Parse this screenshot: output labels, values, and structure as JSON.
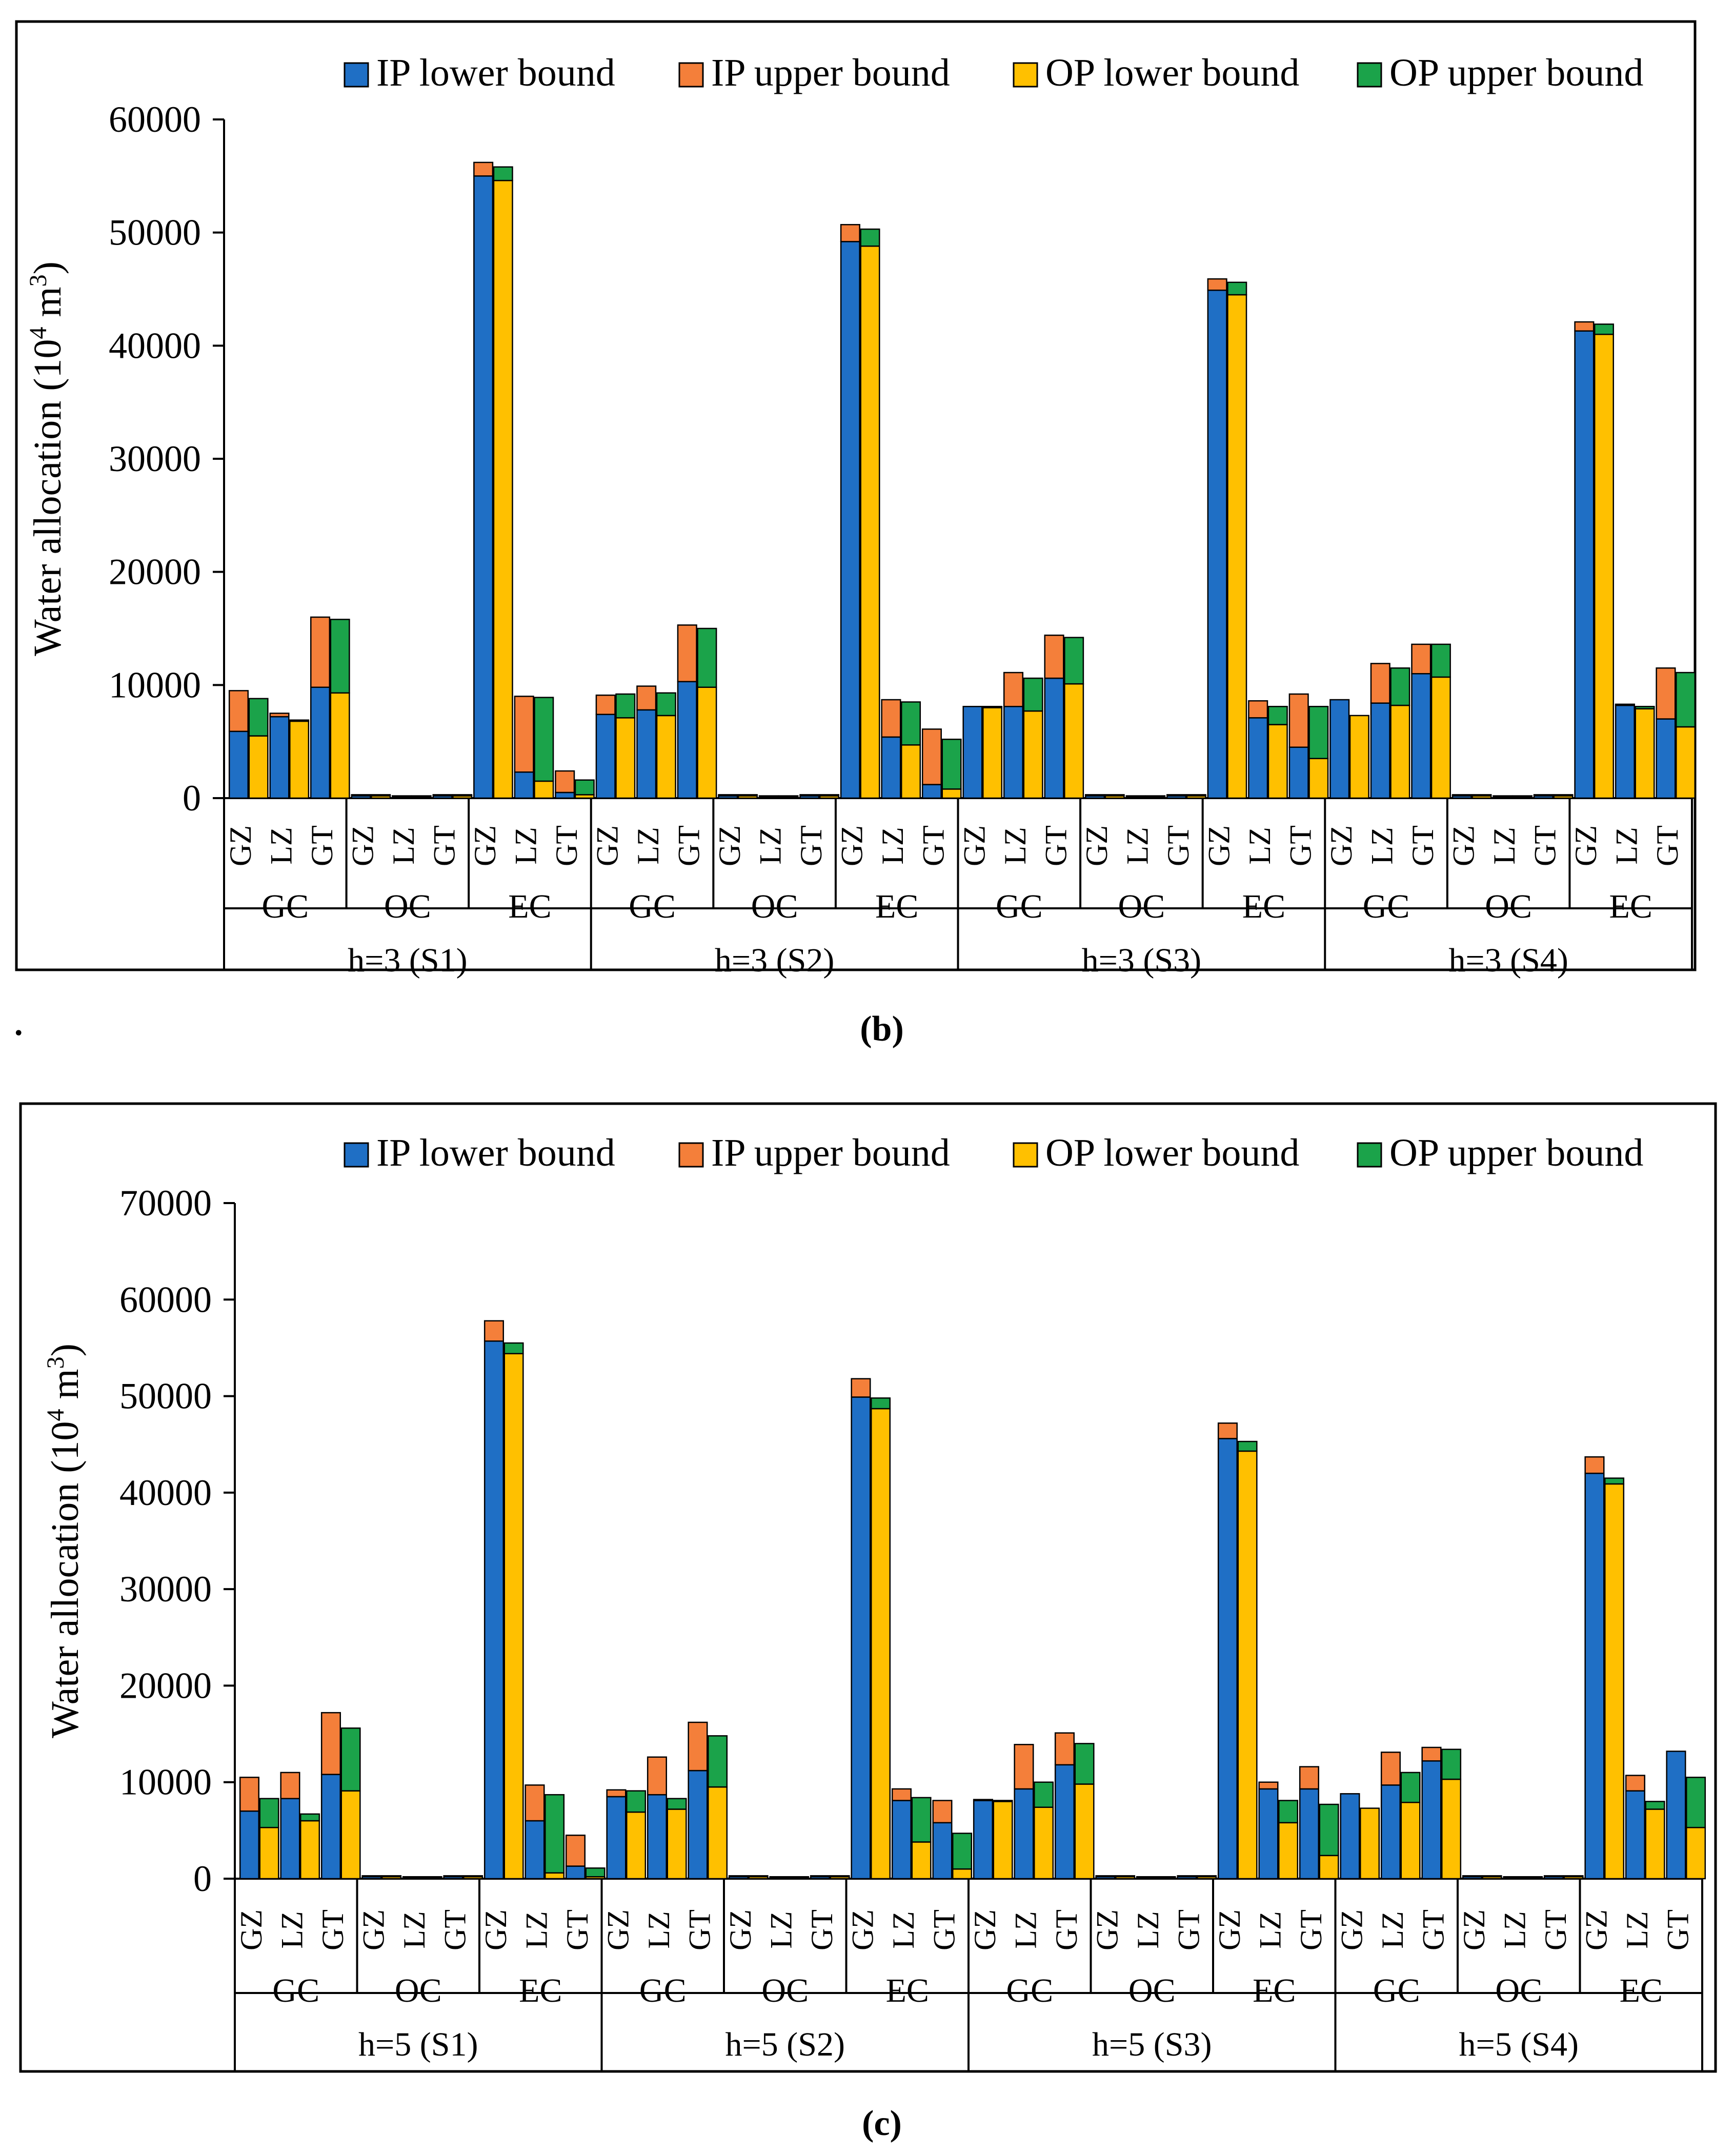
{
  "colors": {
    "ip_lower": "#1F6FC5",
    "ip_upper": "#F47F3A",
    "op_lower": "#FFC000",
    "op_upper": "#1BA34A"
  },
  "period_label": ".",
  "chart_data": [
    {
      "type": "bar",
      "panel_label": "(b)",
      "ylabel": "Water allocation (10⁴ m³)",
      "ylim": [
        0,
        60000
      ],
      "yticks": [
        0,
        10000,
        20000,
        30000,
        40000,
        50000,
        60000
      ],
      "legend": [
        "IP lower bound",
        "IP upper bound",
        "OP lower bound",
        "OP upper bound"
      ],
      "legend_position": "top",
      "scenarios": [
        "h=3 (S1)",
        "h=3 (S2)",
        "h=3 (S3)",
        "h=3 (S4)"
      ],
      "sectors": [
        "GC",
        "OC",
        "EC"
      ],
      "regions": [
        "GZ",
        "LZ",
        "GT"
      ],
      "ip_lower": [
        [
          [
            5900,
            7200,
            9800
          ],
          [
            200,
            100,
            200
          ],
          [
            55000,
            2300,
            500
          ]
        ],
        [
          [
            7400,
            7800,
            10300
          ],
          [
            200,
            100,
            200
          ],
          [
            49200,
            5400,
            1200
          ]
        ],
        [
          [
            8100,
            8100,
            10600
          ],
          [
            200,
            100,
            200
          ],
          [
            44900,
            7100,
            4500
          ]
        ],
        [
          [
            8700,
            8400,
            11000
          ],
          [
            200,
            100,
            200
          ],
          [
            41300,
            8200,
            7000
          ]
        ]
      ],
      "ip_upper": [
        [
          [
            9500,
            7500,
            16000
          ],
          [
            300,
            200,
            300
          ],
          [
            56200,
            9000,
            2400
          ]
        ],
        [
          [
            9100,
            9900,
            15300
          ],
          [
            300,
            200,
            300
          ],
          [
            50700,
            8700,
            6100
          ]
        ],
        [
          [
            8100,
            11100,
            14400
          ],
          [
            300,
            200,
            300
          ],
          [
            45900,
            8600,
            9200
          ]
        ],
        [
          [
            8700,
            11900,
            13600
          ],
          [
            300,
            200,
            300
          ],
          [
            42100,
            8300,
            11500
          ]
        ]
      ],
      "op_lower": [
        [
          [
            5500,
            6800,
            9300
          ],
          [
            200,
            100,
            200
          ],
          [
            54600,
            1500,
            300
          ]
        ],
        [
          [
            7100,
            7300,
            9800
          ],
          [
            200,
            100,
            200
          ],
          [
            48800,
            4700,
            800
          ]
        ],
        [
          [
            8000,
            7700,
            10100
          ],
          [
            200,
            100,
            200
          ],
          [
            44500,
            6500,
            3500
          ]
        ],
        [
          [
            7300,
            8200,
            10700
          ],
          [
            200,
            100,
            200
          ],
          [
            41000,
            7900,
            6300
          ]
        ]
      ],
      "op_upper": [
        [
          [
            8800,
            6900,
            15800
          ],
          [
            300,
            200,
            300
          ],
          [
            55800,
            8900,
            1600
          ]
        ],
        [
          [
            9200,
            9300,
            15000
          ],
          [
            300,
            200,
            300
          ],
          [
            50300,
            8500,
            5200
          ]
        ],
        [
          [
            8100,
            10600,
            14200
          ],
          [
            300,
            200,
            300
          ],
          [
            45600,
            8100,
            8100
          ]
        ],
        [
          [
            7300,
            11500,
            13600
          ],
          [
            300,
            200,
            300
          ],
          [
            41900,
            8100,
            11100
          ]
        ]
      ]
    },
    {
      "type": "bar",
      "panel_label": "(c)",
      "ylabel": "Water allocation (10⁴ m³)",
      "ylim": [
        0,
        70000
      ],
      "yticks": [
        0,
        10000,
        20000,
        30000,
        40000,
        50000,
        60000,
        70000
      ],
      "legend": [
        "IP lower bound",
        "IP upper bound",
        "OP lower bound",
        "OP upper bound"
      ],
      "legend_position": "top",
      "scenarios": [
        "h=5 (S1)",
        "h=5 (S2)",
        "h=5 (S3)",
        "h=5 (S4)"
      ],
      "sectors": [
        "GC",
        "OC",
        "EC"
      ],
      "regions": [
        "GZ",
        "LZ",
        "GT"
      ],
      "ip_lower": [
        [
          [
            7000,
            8300,
            10800
          ],
          [
            200,
            100,
            200
          ],
          [
            55700,
            6000,
            1300
          ]
        ],
        [
          [
            8500,
            8700,
            11200
          ],
          [
            200,
            100,
            200
          ],
          [
            49900,
            8100,
            5800
          ]
        ],
        [
          [
            8100,
            9300,
            11800
          ],
          [
            200,
            100,
            200
          ],
          [
            45600,
            9300,
            9300
          ]
        ],
        [
          [
            8800,
            9700,
            12200
          ],
          [
            200,
            100,
            200
          ],
          [
            42000,
            9100,
            13200
          ]
        ]
      ],
      "ip_upper": [
        [
          [
            10500,
            11000,
            17200
          ],
          [
            300,
            200,
            300
          ],
          [
            57800,
            9700,
            4500
          ]
        ],
        [
          [
            9200,
            12600,
            16200
          ],
          [
            300,
            200,
            300
          ],
          [
            51800,
            9300,
            8100
          ]
        ],
        [
          [
            8200,
            13900,
            15100
          ],
          [
            300,
            200,
            300
          ],
          [
            47200,
            10000,
            11600
          ]
        ],
        [
          [
            8800,
            13100,
            13600
          ],
          [
            300,
            200,
            300
          ],
          [
            43700,
            10700,
            13200
          ]
        ]
      ],
      "op_lower": [
        [
          [
            5300,
            6000,
            9100
          ],
          [
            200,
            100,
            200
          ],
          [
            54400,
            600,
            200
          ]
        ],
        [
          [
            6900,
            7200,
            9500
          ],
          [
            200,
            100,
            200
          ],
          [
            48700,
            3800,
            1000
          ]
        ],
        [
          [
            8000,
            7400,
            9800
          ],
          [
            200,
            100,
            200
          ],
          [
            44300,
            5800,
            2400
          ]
        ],
        [
          [
            7300,
            7900,
            10300
          ],
          [
            200,
            100,
            200
          ],
          [
            40900,
            7200,
            5300
          ]
        ]
      ],
      "op_upper": [
        [
          [
            8300,
            6700,
            15600
          ],
          [
            300,
            200,
            300
          ],
          [
            55500,
            8700,
            1100
          ]
        ],
        [
          [
            9100,
            8300,
            14800
          ],
          [
            300,
            200,
            300
          ],
          [
            49800,
            8400,
            4700
          ]
        ],
        [
          [
            8100,
            10000,
            14000
          ],
          [
            300,
            200,
            300
          ],
          [
            45300,
            8100,
            7700
          ]
        ],
        [
          [
            7300,
            11000,
            13400
          ],
          [
            300,
            200,
            300
          ],
          [
            41500,
            8000,
            10500
          ]
        ]
      ]
    }
  ]
}
